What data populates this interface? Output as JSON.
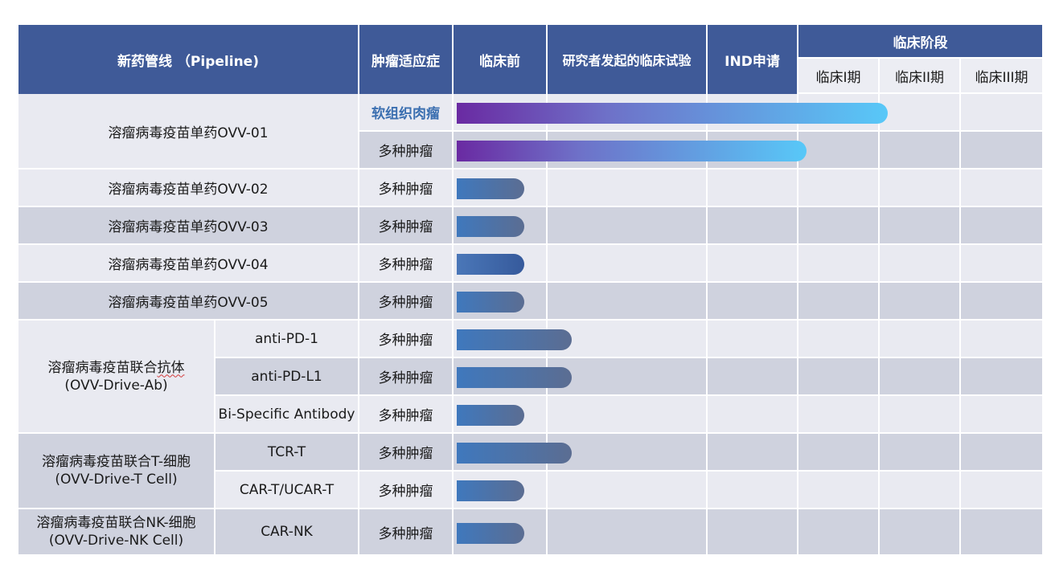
{
  "header": {
    "pipeline": "新药管线 （Pipeline)",
    "indication": "肿瘤适应症",
    "preclinical": "临床前",
    "iit": "研究者发起的临床试验",
    "ind": "IND申请",
    "clinical": "临床阶段",
    "phase1": "临床I期",
    "phase2": "临床II期",
    "phase3": "临床III期"
  },
  "groups": {
    "ovv01": "溶瘤病毒疫苗单药OVV-01",
    "ovv02": "溶瘤病毒疫苗单药OVV-02",
    "ovv03": "溶瘤病毒疫苗单药OVV-03",
    "ovv04": "溶瘤病毒疫苗单药OVV-04",
    "ovv05": "溶瘤病毒疫苗单药OVV-05",
    "ab_line1_pre": "溶瘤病毒疫苗联合",
    "ab_line1_sq": "抗体",
    "ab_line2": "(OVV-Drive-Ab)",
    "t_line1": "溶瘤病毒疫苗联合T-细胞",
    "t_line2": "(OVV-Drive-T Cell)",
    "nk_line1": "溶瘤病毒疫苗联合NK-细胞",
    "nk_line2": "(OVV-Drive-NK Cell)"
  },
  "subtypes": {
    "pd1": "anti-PD-1",
    "pdl1": "anti-PD-L1",
    "bispecific": "Bi-Specific Antibody",
    "tcrt": "TCR-T",
    "cart": "CAR-T/UCAR-T",
    "carnk": "CAR-NK"
  },
  "indications": {
    "r1": "软组织肉瘤",
    "r2": "多种肿瘤",
    "r3": "多种肿瘤",
    "r4": "多种肿瘤",
    "r5": "多种肿瘤",
    "r6": "多种肿瘤",
    "r7": "多种肿瘤",
    "r8": "多种肿瘤",
    "r9": "多种肿瘤",
    "r10": "多种肿瘤",
    "r11": "多种肿瘤",
    "r12": "多种肿瘤"
  },
  "progress_stage_index": {
    "note_scale": "stages: 0=临床前 1=研究者发起的临床试验 2=IND申请 3=临床I期 4=临床II期 5=临床III期",
    "r1": 4.1,
    "r2": 3.1,
    "r3": 0.75,
    "r4": 0.75,
    "r5": 0.75,
    "r6": 0.75,
    "r7": 1.15,
    "r8": 1.15,
    "r9": 0.75,
    "r10": 1.15,
    "r11": 0.75,
    "r12": 0.75
  },
  "colors": {
    "header_bg": "#3f5a98",
    "row_light": "#e9eaf1",
    "row_dark": "#cfd2de",
    "bar_gradient_start": "#6a2aa2",
    "bar_gradient_end": "#58c8f8",
    "bar_short": "#3f78bd",
    "highlight_text": "#3b6fb0"
  }
}
